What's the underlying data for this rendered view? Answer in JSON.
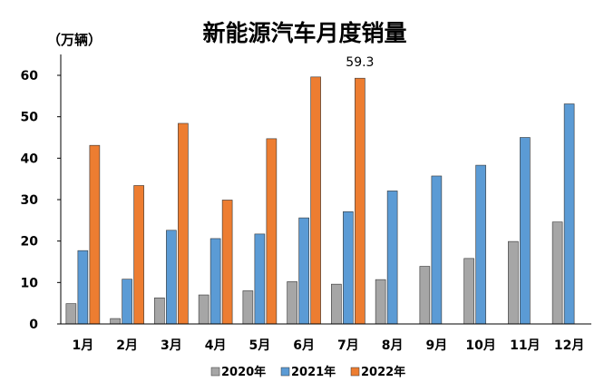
{
  "chart_data": {
    "type": "bar",
    "title": "新能源汽车月度销量",
    "ylabel": "（万辆）",
    "xlabel": "",
    "ylim": [
      0,
      60
    ],
    "yticks": [
      0,
      10,
      20,
      30,
      40,
      50,
      60
    ],
    "grid": false,
    "legend_position": "bottom",
    "categories": [
      "1月",
      "2月",
      "3月",
      "4月",
      "5月",
      "6月",
      "7月",
      "8月",
      "9月",
      "10月",
      "11月",
      "12月"
    ],
    "series": [
      {
        "name": "2020年",
        "color": "#a6a6a6",
        "values": [
          4.9,
          1.3,
          6.3,
          7.0,
          8.0,
          10.2,
          9.6,
          10.7,
          13.9,
          15.8,
          19.9,
          24.6
        ]
      },
      {
        "name": "2021年",
        "color": "#5b9bd5",
        "values": [
          17.7,
          10.8,
          22.6,
          20.6,
          21.7,
          25.6,
          27.1,
          32.1,
          35.7,
          38.3,
          45.0,
          53.1
        ]
      },
      {
        "name": "2022年",
        "color": "#ed7d31",
        "values": [
          43.1,
          33.4,
          48.4,
          29.9,
          44.7,
          59.6,
          59.3,
          null,
          null,
          null,
          null,
          null
        ]
      }
    ],
    "annotations": [
      {
        "series": "2022年",
        "category": "7月",
        "text": "59.3"
      }
    ]
  }
}
